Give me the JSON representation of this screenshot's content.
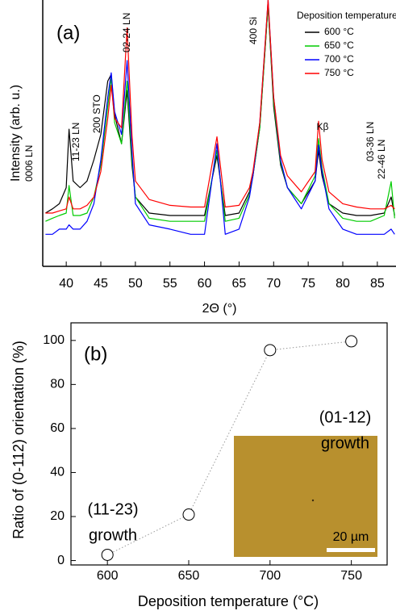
{
  "chart_data": [
    {
      "type": "line",
      "title": "(a)",
      "x_label": "2Θ (°)",
      "y_label": "Intensity (arb. u.)",
      "legend_title": "Deposition temperature:",
      "legend": "top-right",
      "log_y": true,
      "xlim": [
        36.6,
        87.7
      ],
      "xticks": [
        40,
        45,
        50,
        55,
        60,
        65,
        70,
        75,
        80,
        85
      ],
      "ylim": [
        1,
        100000
      ],
      "x": [
        37,
        38,
        39,
        40,
        40.4,
        41,
        42,
        43,
        44,
        45,
        46,
        46.5,
        47,
        48,
        48.8,
        49.5,
        50,
        52,
        55,
        58,
        60,
        61.8,
        63,
        65,
        66.5,
        67,
        68,
        69.2,
        70,
        71,
        72,
        74,
        76,
        76.5,
        77,
        78,
        80,
        82,
        84,
        86,
        87,
        87.5
      ],
      "series": [
        {
          "name": "600 °C",
          "color": "#000000",
          "values": [
            10,
            12,
            15,
            30,
            375,
            40,
            30,
            40,
            100,
            300,
            3000,
            4000,
            700,
            200,
            2000,
            80,
            20,
            10,
            9,
            9,
            9,
            120,
            9,
            10,
            25,
            50,
            400,
            80000,
            1000,
            80,
            30,
            15,
            40,
            150,
            50,
            15,
            10,
            9,
            9,
            10,
            20,
            9
          ]
        },
        {
          "name": "650 °C",
          "color": "#00cc00",
          "values": [
            7,
            8,
            9,
            10,
            33,
            9,
            9,
            10,
            20,
            80,
            1000,
            3500,
            500,
            200,
            3000,
            100,
            20,
            8,
            7,
            7,
            7,
            150,
            7,
            8,
            22,
            50,
            400,
            80000,
            1200,
            90,
            30,
            15,
            50,
            250,
            70,
            15,
            8,
            7,
            7,
            9,
            39,
            8
          ]
        },
        {
          "name": "700 °C",
          "color": "#0000ff",
          "values": [
            4,
            4,
            5,
            5,
            6,
            5,
            5,
            7,
            15,
            100,
            1500,
            4300,
            800,
            300,
            7300,
            150,
            15,
            6,
            5,
            4,
            4,
            200,
            4,
            5,
            20,
            50,
            500,
            100000,
            1500,
            100,
            30,
            12,
            40,
            190,
            60,
            12,
            5,
            4,
            4,
            4,
            5,
            4
          ]
        },
        {
          "name": "750 °C",
          "color": "#ff0000",
          "values": [
            10,
            10,
            11,
            12,
            20,
            12,
            12,
            14,
            20,
            60,
            600,
            2500,
            600,
            400,
            30000,
            300,
            40,
            18,
            14,
            13,
            13,
            270,
            13,
            14,
            30,
            60,
            500,
            100000,
            1500,
            120,
            50,
            25,
            60,
            530,
            100,
            25,
            15,
            13,
            12,
            12,
            14,
            12
          ]
        }
      ],
      "annotations": [
        "0006 LN",
        "11-23 LN",
        "200 STO",
        "02-24 LN",
        "Kβ",
        "400 Si",
        "03-36 LN",
        "22-46 LN"
      ]
    },
    {
      "type": "scatter",
      "title": "(b)",
      "x_label": "Deposition temperature (°C)",
      "y_label": "Ratio of (0-112) orientation (%)",
      "xlim": [
        577.6,
        772
      ],
      "xticks": [
        600,
        650,
        700,
        750
      ],
      "ylim": [
        -2,
        108
      ],
      "yticks": [
        0,
        20,
        40,
        60,
        80,
        100
      ],
      "x": [
        600,
        650,
        700,
        750
      ],
      "values": [
        2.6,
        20.9,
        95.6,
        99.6
      ],
      "annotations": [
        "(01-12)",
        "growth",
        "(11-23)",
        "growth"
      ],
      "inset_scale_label": "20 µm"
    }
  ]
}
